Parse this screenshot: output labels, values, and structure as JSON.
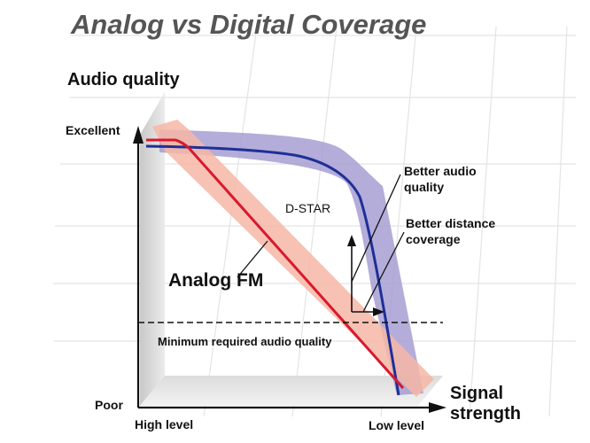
{
  "title": "Analog vs Digital Coverage",
  "axes": {
    "y_label": "Audio quality",
    "y_top": "Excellent",
    "y_bottom": "Poor",
    "x_left": "High level",
    "x_right": "Low level",
    "x_label_line1": "Signal",
    "x_label_line2": "strength"
  },
  "series": {
    "digital": "D-STAR",
    "analog": "Analog FM"
  },
  "threshold_label": "Minimum required audio quality",
  "annotations": {
    "audio_line1": "Better audio",
    "audio_line2": "quality",
    "distance_line1": "Better distance",
    "distance_line2": "coverage"
  },
  "colors": {
    "title": "#555555",
    "text": "#111111",
    "analog": "#d8192e",
    "analog_band": "#f6b7a6",
    "digital": "#1e2f96",
    "digital_band": "#a39bd2"
  }
}
